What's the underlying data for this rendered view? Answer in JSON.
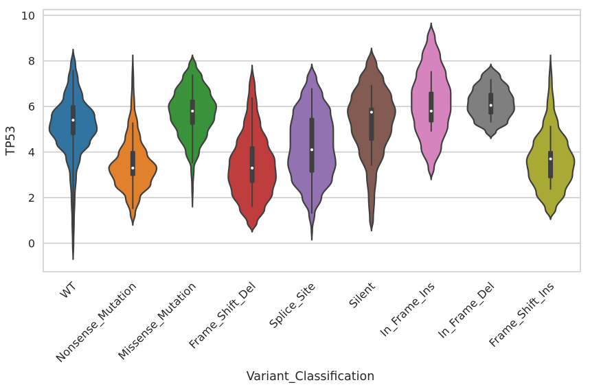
{
  "chart_data": {
    "type": "violin",
    "title": "",
    "xlabel": "Variant_Classification",
    "ylabel": "TP53",
    "ylim": [
      -1.25,
      10.25
    ],
    "yticks": [
      0,
      2,
      4,
      6,
      8,
      10
    ],
    "grid": true,
    "categories": [
      "WT",
      "Nonsense_Mutation",
      "Missense_Mutation",
      "Frame_Shift_Del",
      "Splice_Site",
      "Silent",
      "In_Frame_Ins",
      "In_Frame_Del",
      "Frame_Shift_Ins"
    ],
    "colors": [
      "#3274a1",
      "#e1812c",
      "#3a923a",
      "#c03d3e",
      "#9372b2",
      "#845b53",
      "#d684bd",
      "#7f7f7f",
      "#a9aa35"
    ],
    "violins": [
      {
        "min": -0.7,
        "max": 8.5,
        "q1": 4.75,
        "median": 5.4,
        "q3": 6.05,
        "whisker_low": 0.0,
        "whisker_high": 7.6,
        "profile": [
          [
            -0.7,
            0.0
          ],
          [
            0.0,
            0.02
          ],
          [
            1.0,
            0.04
          ],
          [
            2.0,
            0.07
          ],
          [
            3.0,
            0.13
          ],
          [
            3.8,
            0.3
          ],
          [
            4.4,
            0.7
          ],
          [
            5.0,
            1.0
          ],
          [
            5.6,
            0.9
          ],
          [
            6.4,
            0.4
          ],
          [
            7.2,
            0.2
          ],
          [
            7.8,
            0.1
          ],
          [
            8.5,
            0.0
          ]
        ]
      },
      {
        "min": 0.8,
        "max": 8.25,
        "q1": 2.95,
        "median": 3.3,
        "q3": 4.05,
        "whisker_low": 1.5,
        "whisker_high": 5.3,
        "profile": [
          [
            0.8,
            0.0
          ],
          [
            1.3,
            0.1
          ],
          [
            2.0,
            0.3
          ],
          [
            2.6,
            0.75
          ],
          [
            3.3,
            1.0
          ],
          [
            3.9,
            0.6
          ],
          [
            4.6,
            0.32
          ],
          [
            5.2,
            0.2
          ],
          [
            6.0,
            0.07
          ],
          [
            7.0,
            0.03
          ],
          [
            8.25,
            0.0
          ]
        ]
      },
      {
        "min": 1.6,
        "max": 8.25,
        "q1": 5.2,
        "median": 5.8,
        "q3": 6.3,
        "whisker_low": 3.5,
        "whisker_high": 7.4,
        "profile": [
          [
            1.6,
            0.0
          ],
          [
            2.5,
            0.02
          ],
          [
            3.3,
            0.06
          ],
          [
            4.0,
            0.28
          ],
          [
            4.8,
            0.62
          ],
          [
            5.5,
            0.92
          ],
          [
            6.0,
            1.0
          ],
          [
            6.6,
            0.75
          ],
          [
            7.3,
            0.4
          ],
          [
            7.8,
            0.15
          ],
          [
            8.25,
            0.0
          ]
        ]
      },
      {
        "min": 0.5,
        "max": 7.8,
        "q1": 2.65,
        "median": 3.3,
        "q3": 4.25,
        "whisker_low": 1.6,
        "whisker_high": 6.4,
        "profile": [
          [
            0.5,
            0.0
          ],
          [
            0.9,
            0.2
          ],
          [
            1.5,
            0.52
          ],
          [
            2.2,
            0.85
          ],
          [
            2.9,
            1.0
          ],
          [
            3.6,
            0.95
          ],
          [
            4.4,
            0.65
          ],
          [
            5.2,
            0.35
          ],
          [
            6.0,
            0.2
          ],
          [
            6.8,
            0.12
          ],
          [
            7.8,
            0.0
          ]
        ]
      },
      {
        "min": 0.15,
        "max": 7.85,
        "q1": 3.1,
        "median": 4.1,
        "q3": 5.5,
        "whisker_low": 1.3,
        "whisker_high": 6.8,
        "profile": [
          [
            0.15,
            0.0
          ],
          [
            0.6,
            0.02
          ],
          [
            1.3,
            0.12
          ],
          [
            2.0,
            0.4
          ],
          [
            2.8,
            0.85
          ],
          [
            3.5,
            1.0
          ],
          [
            4.3,
            0.9
          ],
          [
            5.0,
            0.9
          ],
          [
            5.8,
            0.78
          ],
          [
            6.5,
            0.45
          ],
          [
            7.2,
            0.2
          ],
          [
            7.85,
            0.0
          ]
        ]
      },
      {
        "min": 0.55,
        "max": 8.55,
        "q1": 4.5,
        "median": 5.75,
        "q3": 5.95,
        "whisker_low": 3.4,
        "whisker_high": 6.95,
        "profile": [
          [
            0.55,
            0.0
          ],
          [
            1.0,
            0.07
          ],
          [
            2.0,
            0.12
          ],
          [
            3.0,
            0.2
          ],
          [
            4.0,
            0.52
          ],
          [
            5.0,
            0.84
          ],
          [
            5.8,
            1.0
          ],
          [
            6.4,
            0.84
          ],
          [
            7.2,
            0.5
          ],
          [
            7.8,
            0.22
          ],
          [
            8.55,
            0.0
          ]
        ]
      },
      {
        "min": 2.8,
        "max": 9.65,
        "q1": 5.3,
        "median": 5.8,
        "q3": 6.65,
        "whisker_low": 4.9,
        "whisker_high": 7.55,
        "profile": [
          [
            2.8,
            0.0
          ],
          [
            3.3,
            0.12
          ],
          [
            4.2,
            0.42
          ],
          [
            5.2,
            0.7
          ],
          [
            5.9,
            0.82
          ],
          [
            6.6,
            0.82
          ],
          [
            7.4,
            0.62
          ],
          [
            8.2,
            0.38
          ],
          [
            9.0,
            0.16
          ],
          [
            9.65,
            0.0
          ]
        ]
      },
      {
        "min": 4.6,
        "max": 7.85,
        "q1": 5.65,
        "median": 6.05,
        "q3": 6.6,
        "whisker_low": 5.3,
        "whisker_high": 7.2,
        "profile": [
          [
            4.6,
            0.0
          ],
          [
            4.9,
            0.22
          ],
          [
            5.3,
            0.7
          ],
          [
            5.9,
            0.98
          ],
          [
            6.3,
            0.95
          ],
          [
            6.8,
            0.75
          ],
          [
            7.3,
            0.4
          ],
          [
            7.85,
            0.0
          ]
        ]
      },
      {
        "min": 1.05,
        "max": 8.25,
        "q1": 2.85,
        "median": 3.7,
        "q3": 4.05,
        "whisker_low": 2.35,
        "whisker_high": 5.15,
        "profile": [
          [
            1.05,
            0.0
          ],
          [
            1.5,
            0.22
          ],
          [
            2.2,
            0.6
          ],
          [
            3.0,
            0.92
          ],
          [
            3.6,
            1.0
          ],
          [
            4.4,
            0.72
          ],
          [
            5.2,
            0.32
          ],
          [
            6.0,
            0.14
          ],
          [
            7.0,
            0.06
          ],
          [
            8.25,
            0.0
          ]
        ]
      }
    ]
  }
}
